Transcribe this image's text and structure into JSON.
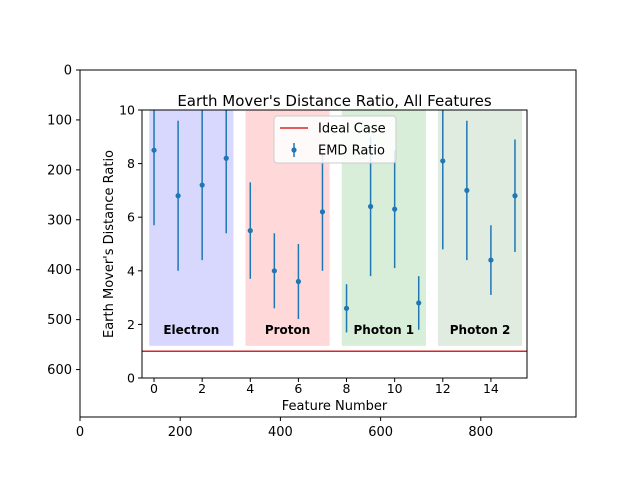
{
  "outer_axes": {
    "x_ticks": [
      0,
      200,
      400,
      600,
      800
    ],
    "y_ticks": [
      0,
      100,
      200,
      300,
      400,
      500,
      600
    ],
    "xlim": [
      0,
      990
    ],
    "ylim_inverted": [
      0,
      695
    ]
  },
  "chart_data": {
    "type": "scatter",
    "title": "Earth Mover's Distance Ratio, All Features",
    "xlabel": "Feature Number",
    "ylabel": "Earth Mover's Distance Ratio",
    "xlim": [
      -0.5,
      15.5
    ],
    "ylim": [
      0,
      10
    ],
    "x_ticks": [
      0,
      2,
      4,
      6,
      8,
      10,
      12,
      14
    ],
    "y_ticks": [
      0,
      2,
      4,
      6,
      8,
      10
    ],
    "ideal_case": 1.0,
    "legend": {
      "placement": "top-center",
      "entries": [
        {
          "label": "Ideal Case",
          "color": "#d62728",
          "marker": "line"
        },
        {
          "label": "EMD Ratio",
          "color": "#1f77b4",
          "marker": "errorbar"
        }
      ]
    },
    "regions": [
      {
        "label": "Electron",
        "x_range": [
          -0.2,
          3.3
        ],
        "color": "#7f7fff",
        "alpha": 0.3
      },
      {
        "label": "Proton",
        "x_range": [
          3.8,
          7.3
        ],
        "color": "#ff9f9f",
        "alpha": 0.4
      },
      {
        "label": "Photon 1",
        "x_range": [
          7.8,
          11.3
        ],
        "color": "#9fd59f",
        "alpha": 0.4
      },
      {
        "label": "Photon 2",
        "x_range": [
          11.8,
          15.3
        ],
        "color": "#a9c9a9",
        "alpha": 0.35
      }
    ],
    "series": [
      {
        "name": "EMD Ratio",
        "color": "#1f77b4",
        "x": [
          0,
          1,
          2,
          3,
          4,
          5,
          6,
          7,
          8,
          9,
          10,
          11,
          12,
          13,
          14,
          15
        ],
        "y": [
          8.5,
          6.8,
          7.2,
          8.2,
          5.5,
          4.0,
          3.6,
          6.2,
          2.6,
          6.4,
          6.3,
          2.8,
          8.1,
          7.0,
          4.4,
          6.8
        ],
        "yerr": [
          2.8,
          2.8,
          2.8,
          2.8,
          1.8,
          1.4,
          1.4,
          2.2,
          0.9,
          2.6,
          2.2,
          1.0,
          3.3,
          2.6,
          1.3,
          2.1
        ]
      }
    ]
  }
}
